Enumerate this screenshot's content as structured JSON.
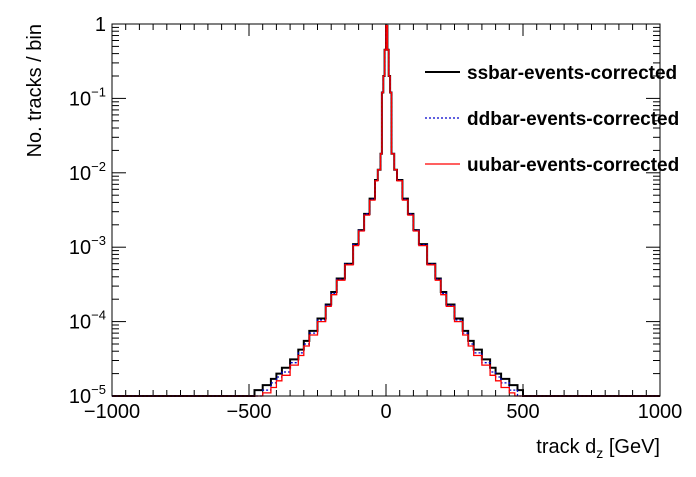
{
  "chart_data": {
    "type": "line",
    "xlabel": "track d",
    "xlabel_subscript": "z",
    "xlabel_unit": " [GeV]",
    "ylabel": "No. tracks / bin",
    "xlim": [
      -1000,
      1000
    ],
    "ylim": [
      1e-05,
      1
    ],
    "y_scale": "log",
    "x_ticks": [
      {
        "value": -1000,
        "label": "−1000"
      },
      {
        "value": -500,
        "label": "−500"
      },
      {
        "value": 0,
        "label": "0"
      },
      {
        "value": 500,
        "label": "500"
      },
      {
        "value": 1000,
        "label": "1000"
      }
    ],
    "y_ticks": [
      {
        "value": 1e-05,
        "base": "10",
        "exp": "−5"
      },
      {
        "value": 0.0001,
        "base": "10",
        "exp": "−4"
      },
      {
        "value": 0.001,
        "base": "10",
        "exp": "−3"
      },
      {
        "value": 0.01,
        "base": "10",
        "exp": "−2"
      },
      {
        "value": 0.1,
        "base": "10",
        "exp": "−1"
      },
      {
        "value": 1,
        "base": "1",
        "exp": ""
      }
    ],
    "grid": false,
    "legend_position": "top-right",
    "series": [
      {
        "name": "ssbar-events-corrected",
        "color": "#000000",
        "style": "solid",
        "x": [
          -1000,
          -500,
          -480,
          -450,
          -420,
          -400,
          -380,
          -350,
          -320,
          -300,
          -280,
          -250,
          -220,
          -200,
          -180,
          -150,
          -120,
          -100,
          -80,
          -60,
          -40,
          -30,
          -20,
          -15,
          -10,
          -5,
          0,
          5,
          10,
          15,
          20,
          30,
          40,
          60,
          80,
          100,
          120,
          150,
          180,
          200,
          220,
          250,
          280,
          300,
          320,
          350,
          380,
          400,
          420,
          450,
          480,
          500,
          1000
        ],
        "y": [
          1e-05,
          1e-05,
          1.2e-05,
          1.4e-05,
          1.7e-05,
          2e-05,
          2.4e-05,
          3.1e-05,
          4.2e-05,
          5.5e-05,
          7.5e-05,
          0.00011,
          0.00017,
          0.00025,
          0.00038,
          0.0006,
          0.0011,
          0.0017,
          0.0028,
          0.0045,
          0.008,
          0.011,
          0.018,
          0.12,
          0.2,
          0.45,
          0.95,
          0.45,
          0.2,
          0.12,
          0.018,
          0.011,
          0.008,
          0.0045,
          0.0028,
          0.0017,
          0.0011,
          0.0006,
          0.00038,
          0.00025,
          0.00017,
          0.00011,
          7.5e-05,
          5.5e-05,
          4.2e-05,
          3.1e-05,
          2.4e-05,
          2e-05,
          1.7e-05,
          1.4e-05,
          1.2e-05,
          1e-05,
          1e-05
        ]
      },
      {
        "name": "ddbar-events-corrected",
        "color": "#0000cc",
        "style": "dotted",
        "x": [
          -1000,
          -480,
          -450,
          -420,
          -400,
          -380,
          -350,
          -320,
          -300,
          -280,
          -250,
          -220,
          -200,
          -180,
          -150,
          -120,
          -100,
          -80,
          -60,
          -40,
          -30,
          -20,
          -15,
          -10,
          -5,
          0,
          5,
          10,
          15,
          20,
          30,
          40,
          60,
          80,
          100,
          120,
          150,
          180,
          200,
          220,
          250,
          280,
          300,
          320,
          350,
          380,
          400,
          420,
          450,
          480,
          1000
        ],
        "y": [
          1e-05,
          1e-05,
          1.2e-05,
          1.5e-05,
          1.8e-05,
          2.1e-05,
          2.8e-05,
          3.8e-05,
          5e-05,
          7e-05,
          0.000105,
          0.000165,
          0.00024,
          0.00037,
          0.00059,
          0.00108,
          0.00168,
          0.0028,
          0.0044,
          0.0079,
          0.011,
          0.018,
          0.12,
          0.2,
          0.45,
          0.95,
          0.45,
          0.2,
          0.12,
          0.018,
          0.011,
          0.0079,
          0.0044,
          0.0028,
          0.00168,
          0.00108,
          0.00059,
          0.00037,
          0.00024,
          0.000165,
          0.000105,
          7e-05,
          5e-05,
          3.8e-05,
          2.8e-05,
          2.1e-05,
          1.8e-05,
          1.5e-05,
          1.2e-05,
          1e-05,
          1e-05
        ]
      },
      {
        "name": "uubar-events-corrected",
        "color": "#ff0000",
        "style": "solid",
        "x": [
          -1000,
          -470,
          -450,
          -420,
          -400,
          -380,
          -350,
          -320,
          -300,
          -280,
          -250,
          -220,
          -200,
          -180,
          -150,
          -120,
          -100,
          -80,
          -60,
          -40,
          -30,
          -20,
          -15,
          -10,
          -5,
          0,
          5,
          10,
          15,
          20,
          30,
          40,
          60,
          80,
          100,
          120,
          150,
          180,
          200,
          220,
          250,
          280,
          300,
          320,
          350,
          380,
          400,
          420,
          450,
          470,
          1000
        ],
        "y": [
          1e-05,
          1e-05,
          1.1e-05,
          1.3e-05,
          1.6e-05,
          1.9e-05,
          2.6e-05,
          3.5e-05,
          4.7e-05,
          6.6e-05,
          0.0001,
          0.00016,
          0.00023,
          0.00036,
          0.00058,
          0.00105,
          0.00165,
          0.0027,
          0.0043,
          0.0078,
          0.011,
          0.018,
          0.12,
          0.2,
          0.45,
          0.95,
          0.45,
          0.2,
          0.12,
          0.018,
          0.011,
          0.0078,
          0.0043,
          0.0027,
          0.00165,
          0.00105,
          0.00058,
          0.00036,
          0.00023,
          0.00016,
          0.0001,
          6.6e-05,
          4.7e-05,
          3.5e-05,
          2.6e-05,
          1.9e-05,
          1.6e-05,
          1.3e-05,
          1.1e-05,
          1e-05,
          1e-05
        ]
      }
    ]
  }
}
